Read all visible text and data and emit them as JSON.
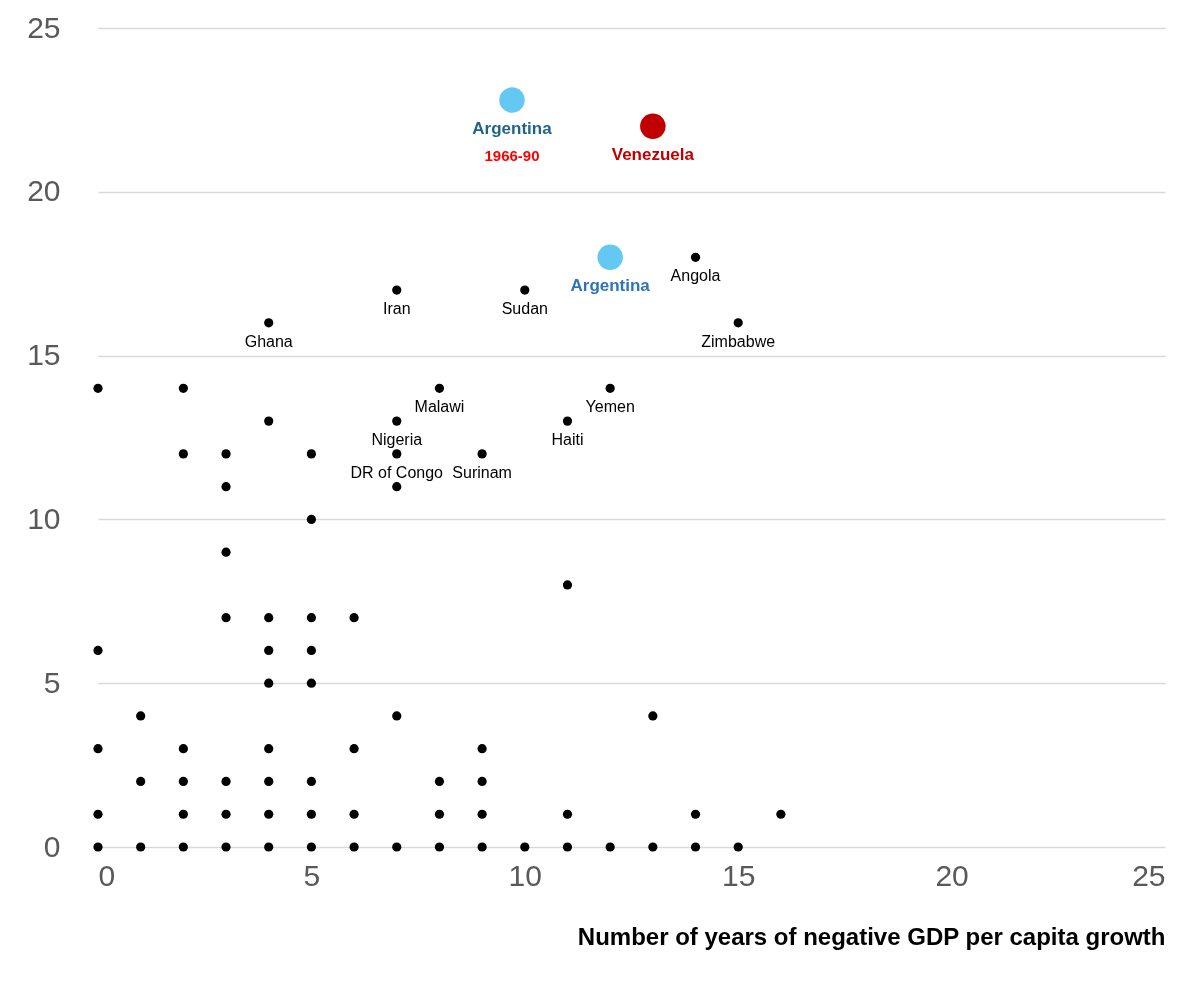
{
  "chart_data": {
    "type": "scatter",
    "xlabel": "Number of years of negative GDP per capita growth",
    "xlim": [
      0,
      25
    ],
    "xticks": [
      0,
      5,
      10,
      15,
      20,
      25
    ],
    "ylim": [
      0,
      25
    ],
    "yticks": [
      0,
      5,
      10,
      15,
      20,
      25
    ],
    "grid": "y",
    "marker": "circle",
    "series": [
      {
        "color": "#000000",
        "x": [
          0,
          0,
          0,
          0,
          0,
          1,
          1,
          1,
          2,
          2,
          2,
          2,
          2,
          2,
          3,
          3,
          3,
          3,
          3,
          3,
          3,
          4,
          4,
          4,
          4,
          4,
          4,
          4,
          4,
          4,
          5,
          5,
          5,
          5,
          5,
          5,
          5,
          5,
          6,
          6,
          6,
          6,
          7,
          7,
          7,
          7,
          7,
          7,
          8,
          8,
          8,
          8,
          9,
          9,
          9,
          9,
          9,
          10,
          10,
          11,
          11,
          11,
          11,
          12,
          12,
          13,
          13,
          14,
          14,
          14,
          15,
          15,
          16
        ],
        "values": [
          14,
          6,
          3,
          1,
          0,
          4,
          2,
          0,
          14,
          12,
          3,
          2,
          1,
          0,
          12,
          11,
          9,
          7,
          2,
          1,
          0,
          16,
          13,
          7,
          6,
          5,
          3,
          2,
          1,
          0,
          12,
          10,
          7,
          6,
          5,
          2,
          1,
          0,
          7,
          3,
          1,
          0,
          17,
          13,
          12,
          11,
          4,
          0,
          14,
          2,
          1,
          0,
          12,
          3,
          2,
          1,
          0,
          17,
          0,
          13,
          8,
          1,
          0,
          14,
          0,
          4,
          0,
          18,
          1,
          0,
          16,
          0,
          1
        ],
        "value_labels": [
          null,
          null,
          null,
          null,
          null,
          null,
          null,
          null,
          null,
          null,
          null,
          null,
          null,
          null,
          null,
          null,
          null,
          null,
          null,
          null,
          null,
          "Ghana",
          null,
          null,
          null,
          null,
          null,
          null,
          null,
          null,
          null,
          null,
          null,
          null,
          null,
          null,
          null,
          null,
          null,
          null,
          null,
          null,
          "Iran",
          "Nigeria",
          "DR of Congo",
          null,
          null,
          null,
          "Malawi",
          null,
          null,
          null,
          "Surinam",
          null,
          null,
          null,
          null,
          "Sudan",
          null,
          "Haiti",
          null,
          null,
          null,
          "Yemen",
          null,
          null,
          null,
          "Angola",
          null,
          null,
          "Zimbabwe",
          null,
          null
        ]
      },
      {
        "color": "#63c9f2",
        "x": [
          9.7
        ],
        "values": [
          22.8
        ],
        "value_labels": [
          "Argentina"
        ]
      },
      {
        "color": "#c00000",
        "x": [
          13
        ],
        "values": [
          22
        ],
        "value_labels": [
          "Venezuela"
        ]
      },
      {
        "color": "#63c9f2",
        "x": [
          12
        ],
        "values": [
          18
        ],
        "value_labels": [
          "Argentina"
        ]
      }
    ],
    "annotations": [
      "1966-90"
    ]
  }
}
